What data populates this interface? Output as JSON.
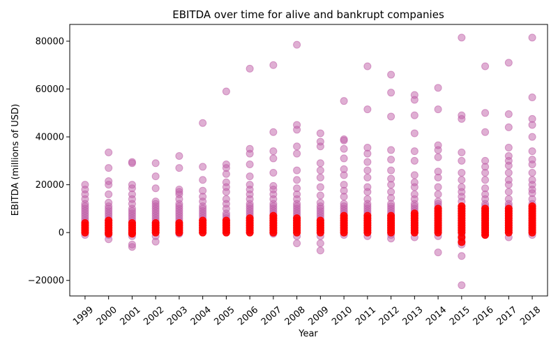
{
  "chart_data": {
    "type": "scatter",
    "title": "EBITDA over time for alive and bankrupt companies",
    "xlabel": "Year",
    "ylabel": "EBITDA (millions of USD)",
    "x_ticks": [
      "1999",
      "2000",
      "2001",
      "2002",
      "2003",
      "2004",
      "2005",
      "2006",
      "2007",
      "2008",
      "2009",
      "2010",
      "2011",
      "2012",
      "2013",
      "2014",
      "2015",
      "2016",
      "2017",
      "2018"
    ],
    "y_ticks": [
      -20000,
      0,
      20000,
      40000,
      60000,
      80000
    ],
    "ylim": [
      -26500,
      87000
    ],
    "grid": false,
    "legend": "none",
    "colors": {
      "alive": "#c060a8",
      "bankrupt": "#ff0000"
    },
    "series": [
      {
        "values": [
          {
            "x": "1999",
            "y": [
              -1000,
              0,
              1000,
              2000,
              3000,
              4000,
              5000,
              6000,
              7000,
              8000,
              9000,
              10000,
              11000,
              12000,
              14000,
              16000,
              18000,
              20000
            ]
          },
          {
            "x": "2000",
            "y": [
              -2800,
              -1000,
              0,
              1000,
              2000,
              3000,
              4000,
              5000,
              6000,
              7000,
              8000,
              9000,
              10000,
              11000,
              12500,
              16000,
              20000,
              21500,
              27000,
              33500
            ]
          },
          {
            "x": "2001",
            "y": [
              -6000,
              -5000,
              -1500,
              0,
              1000,
              2000,
              3000,
              4000,
              5000,
              6000,
              7000,
              8000,
              9000,
              10000,
              12000,
              14000,
              16000,
              18500,
              20000,
              29000,
              29500
            ]
          },
          {
            "x": "2002",
            "y": [
              -3800,
              -1500,
              0,
              1000,
              2000,
              3000,
              4000,
              5000,
              6000,
              7000,
              8000,
              9000,
              10000,
              11000,
              12000,
              13000,
              18500,
              23500,
              29000
            ]
          },
          {
            "x": "2003",
            "y": [
              -500,
              0,
              1000,
              2000,
              3000,
              4000,
              5000,
              6000,
              7000,
              8000,
              9000,
              10000,
              11000,
              12000,
              14000,
              16000,
              17000,
              18000,
              27000,
              32000
            ]
          },
          {
            "x": "2004",
            "y": [
              0,
              1000,
              2000,
              3000,
              4000,
              5000,
              6000,
              7000,
              8000,
              9000,
              10000,
              11000,
              13000,
              15000,
              17500,
              22000,
              27500,
              45800
            ]
          },
          {
            "x": "2005",
            "y": [
              0,
              1000,
              2000,
              3000,
              4000,
              5000,
              6000,
              7000,
              8000,
              10000,
              12000,
              14000,
              17000,
              19000,
              21000,
              24500,
              27000,
              28500,
              59000
            ]
          },
          {
            "x": "2006",
            "y": [
              0,
              1000,
              2000,
              3000,
              4000,
              5000,
              6000,
              7000,
              8000,
              9000,
              10000,
              11000,
              12000,
              14000,
              16000,
              18000,
              20000,
              23500,
              28500,
              33000,
              35000,
              68500
            ]
          },
          {
            "x": "2007",
            "y": [
              -500,
              0,
              1000,
              2000,
              3000,
              4000,
              5000,
              6000,
              7000,
              8000,
              9000,
              10000,
              11000,
              12000,
              14000,
              16000,
              18000,
              19500,
              25000,
              31000,
              34000,
              42000,
              70000
            ]
          },
          {
            "x": "2008",
            "y": [
              -4500,
              -1500,
              0,
              1000,
              2000,
              3000,
              4000,
              5000,
              6000,
              7000,
              8000,
              9000,
              10000,
              11000,
              12000,
              14000,
              16000,
              18500,
              22000,
              26000,
              33000,
              36000,
              43000,
              45000,
              78500
            ]
          },
          {
            "x": "2009",
            "y": [
              -7500,
              -4500,
              -1500,
              0,
              1000,
              2000,
              3000,
              4000,
              5000,
              6000,
              7000,
              8000,
              9000,
              10000,
              11000,
              12500,
              15500,
              19000,
              23000,
              26000,
              29000,
              36000,
              38000,
              41500
            ]
          },
          {
            "x": "2010",
            "y": [
              -1000,
              0,
              1000,
              2000,
              3000,
              4000,
              5000,
              6000,
              7000,
              8000,
              9000,
              10000,
              11000,
              12000,
              15000,
              17500,
              20000,
              24000,
              26500,
              31000,
              35000,
              38500,
              39000,
              55000
            ]
          },
          {
            "x": "2011",
            "y": [
              -1500,
              0,
              1000,
              2000,
              3000,
              4000,
              5000,
              6000,
              7000,
              8000,
              9000,
              10000,
              11000,
              12000,
              14000,
              17000,
              19000,
              23000,
              26000,
              29500,
              33000,
              35500,
              51500,
              69500
            ]
          },
          {
            "x": "2012",
            "y": [
              -2500,
              -1000,
              0,
              1000,
              2000,
              3000,
              4000,
              5000,
              6000,
              7000,
              8000,
              9000,
              10000,
              11000,
              12000,
              14500,
              17000,
              20000,
              22500,
              26000,
              30500,
              34500,
              48500,
              58500,
              66000
            ]
          },
          {
            "x": "2013",
            "y": [
              -2000,
              0,
              1000,
              2000,
              3000,
              4000,
              5000,
              6000,
              7000,
              8000,
              9000,
              10000,
              11000,
              12000,
              14000,
              16000,
              19000,
              21000,
              24000,
              30000,
              34000,
              41500,
              49000,
              55500,
              57500
            ]
          },
          {
            "x": "2014",
            "y": [
              -8300,
              -1500,
              0,
              1000,
              2000,
              3000,
              4000,
              5000,
              6000,
              7000,
              8000,
              9000,
              10000,
              11000,
              12000,
              13000,
              16000,
              19000,
              23000,
              25500,
              31500,
              34500,
              36500,
              51500,
              60500
            ]
          },
          {
            "x": "2015",
            "y": [
              -22000,
              -9800,
              -5000,
              -3000,
              -1000,
              0,
              1000,
              2000,
              3000,
              4000,
              5000,
              6000,
              7000,
              8000,
              9000,
              10000,
              11000,
              13000,
              15000,
              17000,
              19000,
              22000,
              25000,
              30000,
              33500,
              47500,
              49000,
              81500
            ]
          },
          {
            "x": "2016",
            "y": [
              -1000,
              0,
              1000,
              2000,
              3000,
              4000,
              5000,
              6000,
              7000,
              8000,
              9000,
              10000,
              11000,
              12000,
              14000,
              16000,
              18500,
              22000,
              25000,
              27500,
              30000,
              42000,
              50000,
              69500
            ]
          },
          {
            "x": "2017",
            "y": [
              -2000,
              0,
              1000,
              2000,
              3000,
              4000,
              5000,
              6000,
              7000,
              8000,
              9000,
              10000,
              11000,
              12000,
              14000,
              17000,
              20000,
              22000,
              25000,
              28000,
              30000,
              32000,
              35500,
              44000,
              49500,
              71000
            ]
          },
          {
            "x": "2018",
            "y": [
              -1000,
              0,
              1000,
              2000,
              3000,
              4000,
              5000,
              6000,
              7000,
              8000,
              9000,
              10000,
              11000,
              12000,
              14000,
              16500,
              18000,
              20000,
              22000,
              25000,
              28500,
              30500,
              34000,
              40000,
              45000,
              47500,
              56500,
              81500
            ]
          }
        ]
      },
      {
        "values": [
          {
            "x": "1999",
            "y": [
              0,
              1000,
              2000,
              3000,
              4000
            ]
          },
          {
            "x": "2000",
            "y": [
              -500,
              0,
              1000,
              2000,
              3000,
              4000,
              5000
            ]
          },
          {
            "x": "2001",
            "y": [
              -500,
              0,
              1000,
              2000,
              3000,
              4000
            ]
          },
          {
            "x": "2002",
            "y": [
              0,
              1000,
              2000,
              3000,
              4000
            ]
          },
          {
            "x": "2003",
            "y": [
              0,
              1000,
              2000,
              3000,
              4000
            ]
          },
          {
            "x": "2004",
            "y": [
              0,
              1000,
              2000,
              3000,
              4000,
              5000
            ]
          },
          {
            "x": "2005",
            "y": [
              0,
              1000,
              2000,
              3000,
              4000,
              5000
            ]
          },
          {
            "x": "2006",
            "y": [
              0,
              1000,
              2000,
              3000,
              4000,
              5000,
              6000
            ]
          },
          {
            "x": "2007",
            "y": [
              0,
              1000,
              2000,
              3000,
              4000,
              5000,
              6000,
              7000
            ]
          },
          {
            "x": "2008",
            "y": [
              0,
              1000,
              2000,
              3000,
              4000,
              5000,
              6000
            ]
          },
          {
            "x": "2009",
            "y": [
              0,
              1000,
              2000,
              3000,
              4000,
              5000
            ]
          },
          {
            "x": "2010",
            "y": [
              0,
              1000,
              2000,
              3000,
              4000,
              5000,
              6000,
              7000
            ]
          },
          {
            "x": "2011",
            "y": [
              0,
              1000,
              2000,
              3000,
              4000,
              5000,
              6000,
              7000
            ]
          },
          {
            "x": "2012",
            "y": [
              0,
              1000,
              2000,
              3000,
              4000,
              5000,
              6000,
              7000
            ]
          },
          {
            "x": "2013",
            "y": [
              0,
              1000,
              2000,
              3000,
              4000,
              5000,
              6000,
              7000,
              8000
            ]
          },
          {
            "x": "2014",
            "y": [
              0,
              1000,
              2000,
              3000,
              4000,
              5000,
              6000,
              7000,
              8000,
              9000,
              10000
            ]
          },
          {
            "x": "2015",
            "y": [
              -4000,
              -2000,
              0,
              1000,
              2000,
              3000,
              4000,
              5000,
              6000,
              7000,
              8000,
              9000,
              10000,
              11000
            ]
          },
          {
            "x": "2016",
            "y": [
              -1000,
              0,
              1000,
              2000,
              3000,
              4000,
              5000,
              6000,
              7000,
              8000,
              9000,
              10000
            ]
          },
          {
            "x": "2017",
            "y": [
              0,
              1000,
              2000,
              3000,
              4000,
              5000,
              6000,
              7000,
              8000,
              9000,
              10000
            ]
          },
          {
            "x": "2018",
            "y": [
              0,
              1000,
              2000,
              3000,
              4000,
              5000,
              6000,
              7000,
              8000,
              9000,
              10000,
              11000
            ]
          }
        ]
      }
    ]
  }
}
